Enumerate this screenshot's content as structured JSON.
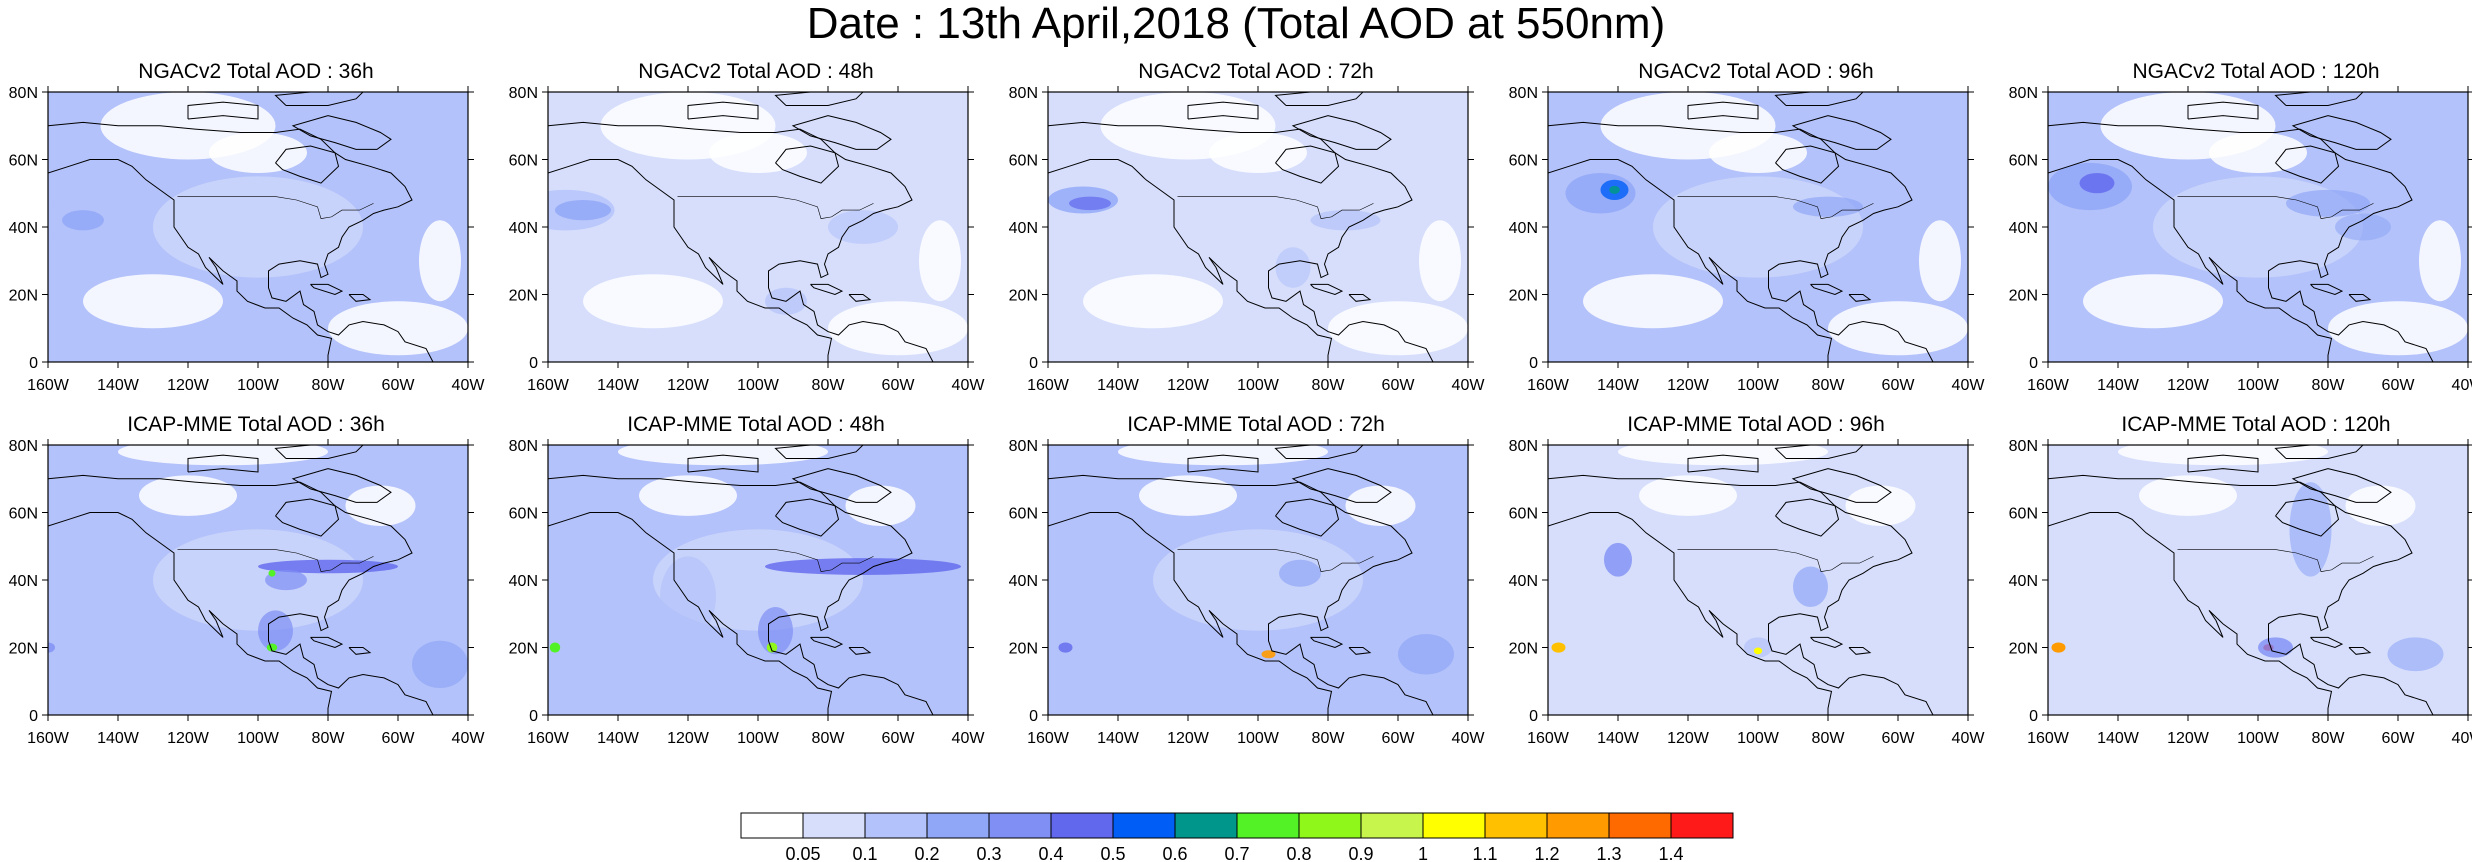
{
  "title": "Date : 13th April,2018 (Total AOD at 550nm)",
  "lat_labels": [
    "0",
    "20N",
    "40N",
    "60N",
    "80N"
  ],
  "lon_labels": [
    "160W",
    "140W",
    "120W",
    "100W",
    "80W",
    "60W",
    "40W"
  ],
  "panels": [
    {
      "title": "NGACv2 Total AOD : 36h",
      "model": "NGACv2",
      "forecast_hour": 36
    },
    {
      "title": "NGACv2 Total AOD : 48h",
      "model": "NGACv2",
      "forecast_hour": 48
    },
    {
      "title": "NGACv2 Total AOD : 72h",
      "model": "NGACv2",
      "forecast_hour": 72
    },
    {
      "title": "NGACv2 Total AOD : 96h",
      "model": "NGACv2",
      "forecast_hour": 96
    },
    {
      "title": "NGACv2 Total AOD : 120h",
      "model": "NGACv2",
      "forecast_hour": 120
    },
    {
      "title": "ICAP-MME Total AOD : 36h",
      "model": "ICAP-MME",
      "forecast_hour": 36
    },
    {
      "title": "ICAP-MME Total AOD : 48h",
      "model": "ICAP-MME",
      "forecast_hour": 48
    },
    {
      "title": "ICAP-MME Total AOD : 72h",
      "model": "ICAP-MME",
      "forecast_hour": 72
    },
    {
      "title": "ICAP-MME Total AOD : 96h",
      "model": "ICAP-MME",
      "forecast_hour": 96
    },
    {
      "title": "ICAP-MME Total AOD : 120h",
      "model": "ICAP-MME",
      "forecast_hour": 120
    }
  ],
  "colorbar": {
    "labels": [
      "0.05",
      "0.1",
      "0.2",
      "0.3",
      "0.4",
      "0.5",
      "0.6",
      "0.7",
      "0.8",
      "0.9",
      "1",
      "1.1",
      "1.2",
      "1.3",
      "1.4"
    ],
    "colors": [
      "#ffffff",
      "#d6defc",
      "#b3c2fa",
      "#90a6f7",
      "#7f8ff4",
      "#6168ee",
      "#005ef7",
      "#00968c",
      "#52f227",
      "#8ff71a",
      "#c7f54b",
      "#ffff00",
      "#ffc000",
      "#ff9a00",
      "#ff6a00",
      "#ff1a1a"
    ]
  }
}
